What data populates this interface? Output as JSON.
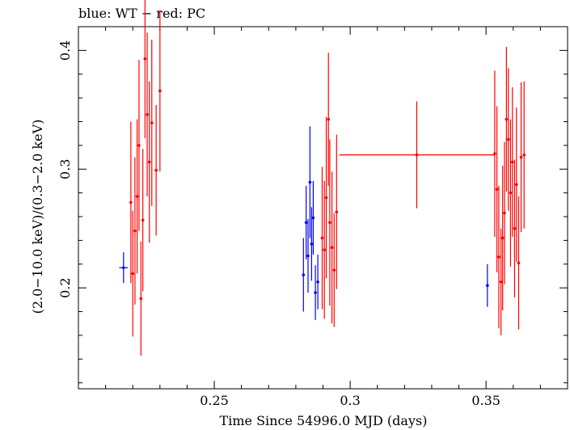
{
  "chart_data": {
    "type": "scatter",
    "title": "blue: WT − red: PC",
    "xlabel": "Time Since 54996.0 MJD (days)",
    "ylabel": "(2.0−10.0 keV)/(0.3−2.0 keV)",
    "xlim": [
      0.2,
      0.38
    ],
    "ylim": [
      0.115,
      0.42
    ],
    "xticks": [
      {
        "value": 0.25,
        "label": "0.25"
      },
      {
        "value": 0.3,
        "label": "0.3"
      },
      {
        "value": 0.35,
        "label": "0.35"
      }
    ],
    "yticks": [
      {
        "value": 0.2,
        "label": "0.2"
      },
      {
        "value": 0.3,
        "label": "0.3"
      },
      {
        "value": 0.4,
        "label": "0.4"
      }
    ],
    "grid": false,
    "series": [
      {
        "mode": "WT",
        "color": "#0000ff",
        "points": [
          {
            "x": 0.2166,
            "y": 0.217,
            "xerr": 0.0016,
            "yerr": 0.013
          },
          {
            "x": 0.2828,
            "y": 0.211,
            "xerr": 0.0003,
            "yerr": 0.031
          },
          {
            "x": 0.2838,
            "y": 0.255,
            "xerr": 0.0003,
            "yerr": 0.031
          },
          {
            "x": 0.2845,
            "y": 0.227,
            "xerr": 0.0003,
            "yerr": 0.031
          },
          {
            "x": 0.2852,
            "y": 0.289,
            "xerr": 0.0003,
            "yerr": 0.047
          },
          {
            "x": 0.2858,
            "y": 0.237,
            "xerr": 0.0003,
            "yerr": 0.031
          },
          {
            "x": 0.2864,
            "y": 0.259,
            "xerr": 0.0003,
            "yerr": 0.031
          },
          {
            "x": 0.2872,
            "y": 0.196,
            "xerr": 0.0003,
            "yerr": 0.023
          },
          {
            "x": 0.2881,
            "y": 0.205,
            "xerr": 0.0003,
            "yerr": 0.023
          },
          {
            "x": 0.3505,
            "y": 0.202,
            "xerr": 0.0003,
            "yerr": 0.018
          }
        ]
      },
      {
        "mode": "PC",
        "color": "#ff0000",
        "points": [
          {
            "x": 0.2193,
            "y": 0.272,
            "xerr": 0.0004,
            "yerr": 0.068
          },
          {
            "x": 0.22,
            "y": 0.212,
            "xerr": 0.0004,
            "yerr": 0.053
          },
          {
            "x": 0.2208,
            "y": 0.248,
            "xerr": 0.0004,
            "yerr": 0.062
          },
          {
            "x": 0.2216,
            "y": 0.277,
            "xerr": 0.0004,
            "yerr": 0.065
          },
          {
            "x": 0.2223,
            "y": 0.32,
            "xerr": 0.0004,
            "yerr": 0.072
          },
          {
            "x": 0.223,
            "y": 0.191,
            "xerr": 0.0004,
            "yerr": 0.048
          },
          {
            "x": 0.2237,
            "y": 0.257,
            "xerr": 0.0004,
            "yerr": 0.06
          },
          {
            "x": 0.2245,
            "y": 0.393,
            "xerr": 0.0004,
            "yerr": 0.067
          },
          {
            "x": 0.2253,
            "y": 0.346,
            "xerr": 0.0004,
            "yerr": 0.069
          },
          {
            "x": 0.2261,
            "y": 0.306,
            "xerr": 0.0004,
            "yerr": 0.068
          },
          {
            "x": 0.227,
            "y": 0.339,
            "xerr": 0.0004,
            "yerr": 0.07
          },
          {
            "x": 0.2286,
            "y": 0.299,
            "xerr": 0.0004,
            "yerr": 0.055
          },
          {
            "x": 0.23,
            "y": 0.366,
            "xerr": 0.0004,
            "yerr": 0.068
          },
          {
            "x": 0.2897,
            "y": 0.242,
            "xerr": 0.0004,
            "yerr": 0.06
          },
          {
            "x": 0.2905,
            "y": 0.232,
            "xerr": 0.0004,
            "yerr": 0.058
          },
          {
            "x": 0.2912,
            "y": 0.276,
            "xerr": 0.0004,
            "yerr": 0.068
          },
          {
            "x": 0.292,
            "y": 0.342,
            "xerr": 0.0004,
            "yerr": 0.056
          },
          {
            "x": 0.2925,
            "y": 0.255,
            "xerr": 0.0004,
            "yerr": 0.07
          },
          {
            "x": 0.2933,
            "y": 0.234,
            "xerr": 0.0004,
            "yerr": 0.064
          },
          {
            "x": 0.2941,
            "y": 0.215,
            "xerr": 0.0004,
            "yerr": 0.048
          },
          {
            "x": 0.295,
            "y": 0.264,
            "xerr": 0.0004,
            "yerr": 0.065
          },
          {
            "x": 0.3245,
            "y": 0.312,
            "xerr": 0.0285,
            "yerr": 0.045
          },
          {
            "x": 0.3532,
            "y": 0.313,
            "xerr": 0.0004,
            "yerr": 0.07
          },
          {
            "x": 0.354,
            "y": 0.283,
            "xerr": 0.0004,
            "yerr": 0.07
          },
          {
            "x": 0.3547,
            "y": 0.226,
            "xerr": 0.0004,
            "yerr": 0.06
          },
          {
            "x": 0.3555,
            "y": 0.205,
            "xerr": 0.0004,
            "yerr": 0.045
          },
          {
            "x": 0.3561,
            "y": 0.242,
            "xerr": 0.0004,
            "yerr": 0.061
          },
          {
            "x": 0.3568,
            "y": 0.263,
            "xerr": 0.0004,
            "yerr": 0.06
          },
          {
            "x": 0.3575,
            "y": 0.342,
            "xerr": 0.0004,
            "yerr": 0.061
          },
          {
            "x": 0.3582,
            "y": 0.325,
            "xerr": 0.0004,
            "yerr": 0.06
          },
          {
            "x": 0.359,
            "y": 0.28,
            "xerr": 0.0004,
            "yerr": 0.062
          },
          {
            "x": 0.3597,
            "y": 0.306,
            "xerr": 0.0004,
            "yerr": 0.063
          },
          {
            "x": 0.3605,
            "y": 0.25,
            "xerr": 0.0004,
            "yerr": 0.058
          },
          {
            "x": 0.3612,
            "y": 0.287,
            "xerr": 0.0004,
            "yerr": 0.065
          },
          {
            "x": 0.362,
            "y": 0.221,
            "xerr": 0.0004,
            "yerr": 0.056
          },
          {
            "x": 0.3629,
            "y": 0.31,
            "xerr": 0.0004,
            "yerr": 0.063
          },
          {
            "x": 0.364,
            "y": 0.312,
            "xerr": 0.0004,
            "yerr": 0.062
          }
        ]
      }
    ]
  }
}
